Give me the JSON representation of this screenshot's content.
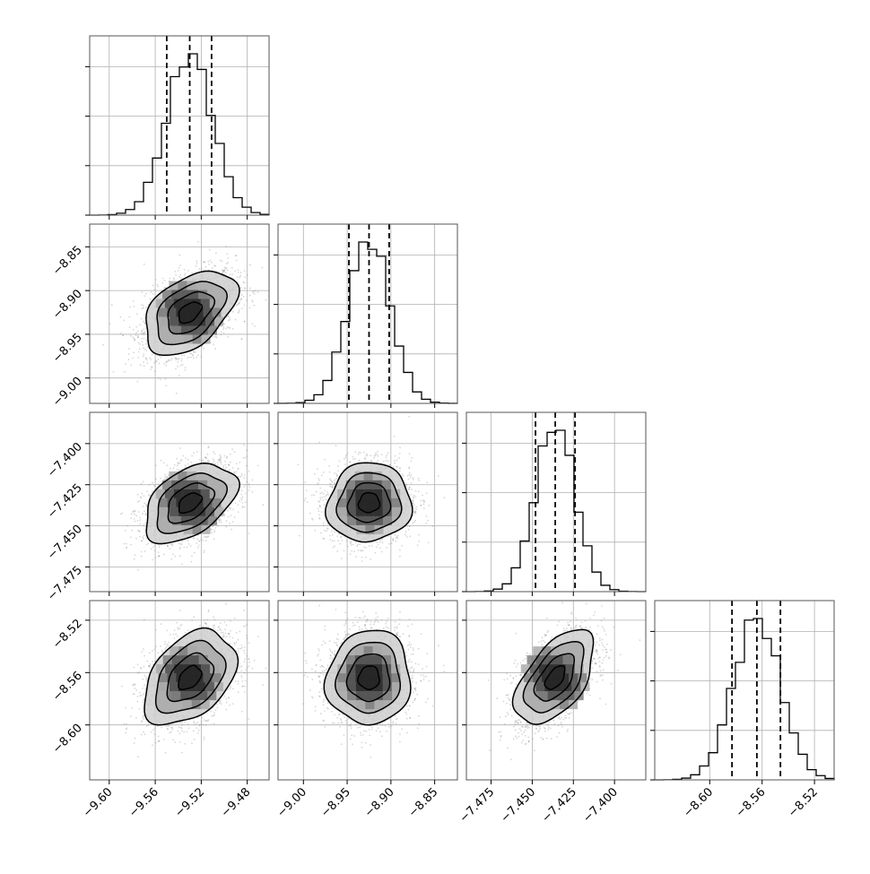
{
  "colors": {
    "background": "#ffffff",
    "axes_edge": "#555555",
    "grid": "#b0b0b0",
    "ink": "#000000",
    "scatter": "#8c8c8c",
    "density_ramp": [
      "#ebebeb",
      "#cfcfcf",
      "#a8a8a8",
      "#7a7a7a",
      "#4a4a4a",
      "#1c1c1c"
    ]
  },
  "chart_data": {
    "type": "corner",
    "title": "",
    "grid": true,
    "parameters": [
      {
        "label": "",
        "center": -9.53,
        "sigma": 0.02,
        "quantiles": [
          -9.55,
          -9.53,
          -9.511
        ],
        "range": [
          -9.617,
          -9.461
        ],
        "ticks": [
          -9.6,
          -9.56,
          -9.52,
          -9.48
        ],
        "tick_labels": [
          "−9.60",
          "−9.56",
          "−9.52",
          "−9.48"
        ]
      },
      {
        "label": "",
        "center": -8.925,
        "sigma": 0.024,
        "quantiles": [
          -8.948,
          -8.925,
          -8.902
        ],
        "range": [
          -9.029,
          -8.824
        ],
        "ticks": [
          -9.0,
          -8.95,
          -8.9,
          -8.85
        ],
        "tick_labels": [
          "−9.00",
          "−8.95",
          "−8.90",
          "−8.85"
        ]
      },
      {
        "label": "",
        "center": -7.436,
        "sigma": 0.012,
        "quantiles": [
          -7.448,
          -7.436,
          -7.424
        ],
        "range": [
          -7.49,
          -7.381
        ],
        "ticks": [
          -7.475,
          -7.45,
          -7.425,
          -7.4
        ],
        "tick_labels": [
          "−7.475",
          "−7.450",
          "−7.425",
          "−7.400"
        ]
      },
      {
        "label": "",
        "center": -8.564,
        "sigma": 0.018,
        "quantiles": [
          -8.583,
          -8.564,
          -8.546
        ],
        "range": [
          -8.642,
          -8.505
        ],
        "ticks": [
          -8.6,
          -8.56,
          -8.52
        ],
        "tick_labels": [
          "−8.60",
          "−8.56",
          "−8.52"
        ]
      }
    ],
    "correlations": [
      {
        "row": 1,
        "col": 0,
        "rho": 0.45
      },
      {
        "row": 2,
        "col": 0,
        "rho": 0.45
      },
      {
        "row": 2,
        "col": 1,
        "rho": 0.05
      },
      {
        "row": 3,
        "col": 0,
        "rho": 0.4
      },
      {
        "row": 3,
        "col": 1,
        "rho": 0.05
      },
      {
        "row": 3,
        "col": 2,
        "rho": 0.55
      }
    ],
    "histogram_bins": 20,
    "contour_levels_sigma": [
      0.5,
      1.0,
      1.5,
      2.0
    ]
  }
}
